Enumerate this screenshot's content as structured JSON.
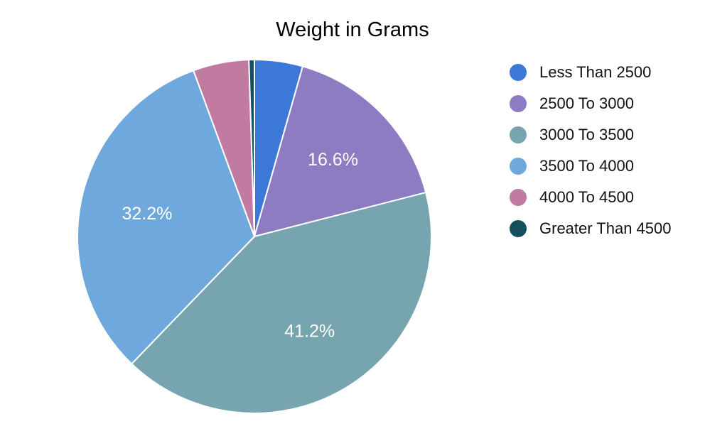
{
  "chart_data": {
    "type": "pie",
    "title": "Weight in Grams",
    "legend_position": "right",
    "slices": [
      {
        "label": "Less Than 2500",
        "value": 4.4,
        "color": "#3C78D8",
        "show_label": false
      },
      {
        "label": "2500 To 3000",
        "value": 16.6,
        "color": "#8E7CC3",
        "show_label": true,
        "display": "16.6%"
      },
      {
        "label": "3000 To 3500",
        "value": 41.2,
        "color": "#76A5AF",
        "show_label": true,
        "display": "41.2%"
      },
      {
        "label": "3500 To 4000",
        "value": 32.2,
        "color": "#6FA8DC",
        "show_label": true,
        "display": "32.2%"
      },
      {
        "label": "4000 To 4500",
        "value": 5.1,
        "color": "#C27BA0",
        "show_label": false
      },
      {
        "label": "Greater Than 4500",
        "value": 0.5,
        "color": "#134F5C",
        "show_label": false
      }
    ]
  }
}
